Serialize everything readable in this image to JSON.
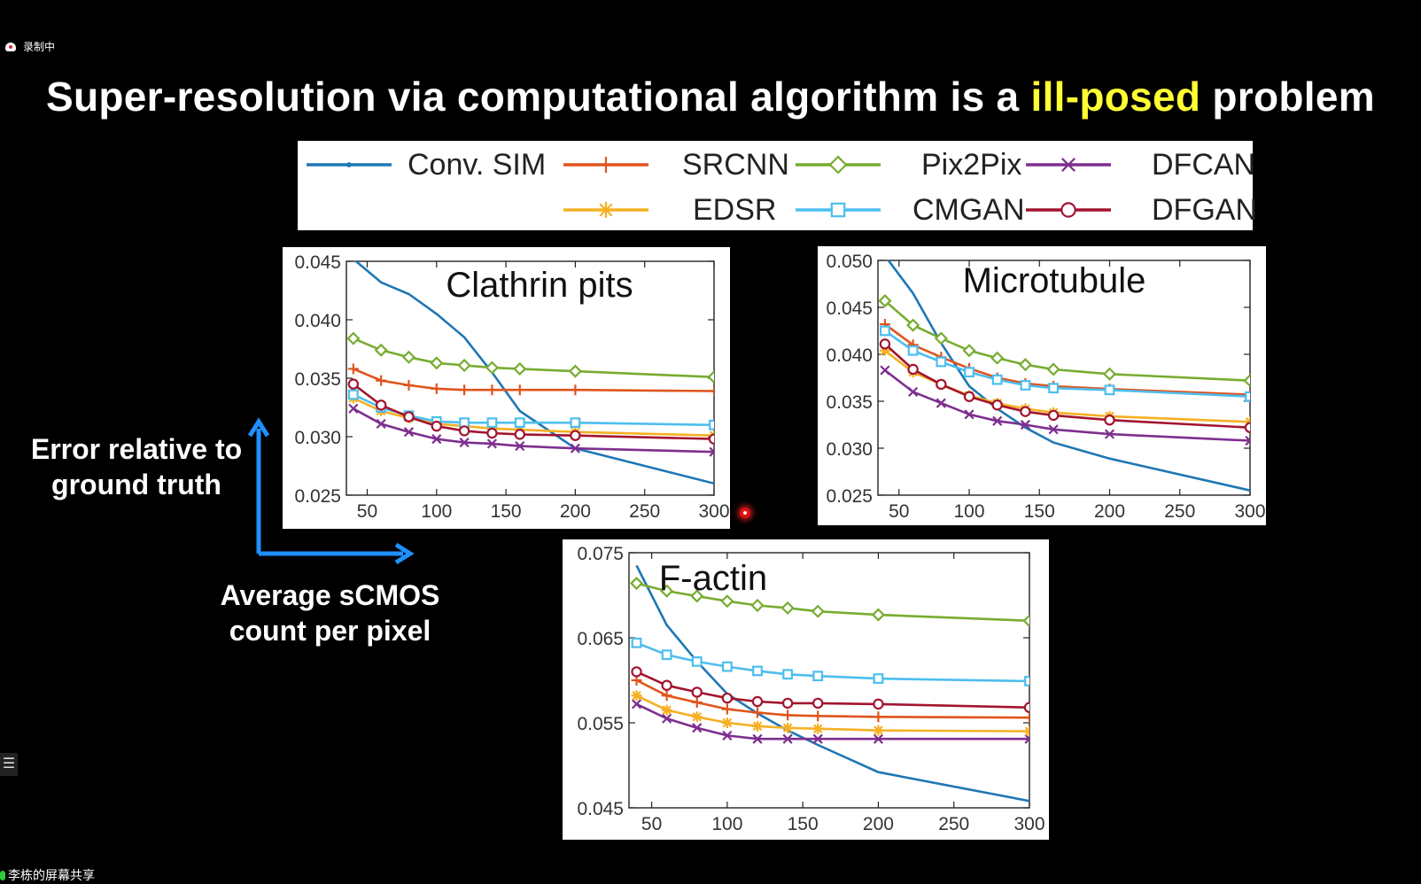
{
  "recording": {
    "label": "录制中"
  },
  "title": {
    "before": "Super-resolution via computational algorithm is a ",
    "highlight": "ill-posed",
    "after": " problem"
  },
  "legend": [
    {
      "name": "Conv. SIM",
      "color": "#1f77b4",
      "marker": "dot"
    },
    {
      "name": "SRCNN",
      "color": "#e0541d",
      "marker": "plus"
    },
    {
      "name": "Pix2Pix",
      "color": "#77ac30",
      "marker": "diamond"
    },
    {
      "name": "DFCAN",
      "color": "#7e2f8e",
      "marker": "x"
    },
    {
      "name": "EDSR",
      "color": "#f5b024",
      "marker": "star"
    },
    {
      "name": "CMGAN",
      "color": "#4dbeee",
      "marker": "square"
    },
    {
      "name": "DFGAN",
      "color": "#a2142f",
      "marker": "circle"
    }
  ],
  "axis_labels": {
    "y": "Error relative to ground truth",
    "x": "Average sCMOS count per pixel"
  },
  "chart_data": [
    {
      "type": "line",
      "title": "Clathrin pits",
      "x": [
        40,
        60,
        80,
        100,
        120,
        140,
        160,
        200,
        300
      ],
      "xlim": [
        35,
        300
      ],
      "ylim": [
        0.025,
        0.045
      ],
      "xticks": [
        "50",
        "100",
        "150",
        "200",
        "250",
        "300"
      ],
      "yticks": [
        "0.025",
        "0.030",
        "0.035",
        "0.040",
        "0.045"
      ],
      "series": [
        {
          "name": "Conv. SIM",
          "values": [
            0.0452,
            0.0432,
            0.0422,
            0.0405,
            0.0385,
            0.0355,
            0.0322,
            0.029,
            0.026
          ]
        },
        {
          "name": "SRCNN",
          "values": [
            0.0358,
            0.0348,
            0.0344,
            0.0341,
            0.034,
            0.034,
            0.034,
            0.034,
            0.0339
          ]
        },
        {
          "name": "Pix2Pix",
          "values": [
            0.0384,
            0.0374,
            0.0368,
            0.0363,
            0.0361,
            0.0359,
            0.0358,
            0.0356,
            0.0351
          ]
        },
        {
          "name": "DFCAN",
          "values": [
            0.0324,
            0.0311,
            0.0304,
            0.0298,
            0.0295,
            0.0294,
            0.0292,
            0.029,
            0.0287
          ]
        },
        {
          "name": "EDSR",
          "values": [
            0.0333,
            0.0322,
            0.0316,
            0.0311,
            0.0309,
            0.0307,
            0.0306,
            0.0304,
            0.0301
          ]
        },
        {
          "name": "CMGAN",
          "values": [
            0.0336,
            0.0325,
            0.0318,
            0.0313,
            0.0312,
            0.0312,
            0.0312,
            0.0312,
            0.031
          ]
        },
        {
          "name": "DFGAN",
          "values": [
            0.0345,
            0.0327,
            0.0317,
            0.0309,
            0.0305,
            0.0303,
            0.0302,
            0.0301,
            0.0298
          ]
        }
      ]
    },
    {
      "type": "line",
      "title": "Microtubule",
      "x": [
        40,
        60,
        80,
        100,
        120,
        140,
        160,
        200,
        300
      ],
      "xlim": [
        35,
        300
      ],
      "ylim": [
        0.025,
        0.05
      ],
      "xticks": [
        "50",
        "100",
        "150",
        "200",
        "250",
        "300"
      ],
      "yticks": [
        "0.025",
        "0.030",
        "0.035",
        "0.040",
        "0.045",
        "0.050"
      ],
      "series": [
        {
          "name": "Conv. SIM",
          "values": [
            0.0505,
            0.0465,
            0.0412,
            0.0366,
            0.0342,
            0.0322,
            0.0306,
            0.0289,
            0.0255
          ]
        },
        {
          "name": "SRCNN",
          "values": [
            0.0432,
            0.041,
            0.0397,
            0.0385,
            0.0375,
            0.0369,
            0.0366,
            0.0363,
            0.0357
          ]
        },
        {
          "name": "Pix2Pix",
          "values": [
            0.0457,
            0.0431,
            0.0417,
            0.0404,
            0.0396,
            0.0389,
            0.0384,
            0.0379,
            0.0372
          ]
        },
        {
          "name": "DFCAN",
          "values": [
            0.0383,
            0.036,
            0.0348,
            0.0336,
            0.0329,
            0.0325,
            0.032,
            0.0315,
            0.0308
          ]
        },
        {
          "name": "EDSR",
          "values": [
            0.0404,
            0.0381,
            0.0368,
            0.0356,
            0.0348,
            0.0342,
            0.0338,
            0.0334,
            0.0328
          ]
        },
        {
          "name": "CMGAN",
          "values": [
            0.0425,
            0.0404,
            0.0392,
            0.0381,
            0.0373,
            0.0367,
            0.0364,
            0.0362,
            0.0355
          ]
        },
        {
          "name": "DFGAN",
          "values": [
            0.0411,
            0.0384,
            0.0368,
            0.0355,
            0.0346,
            0.0339,
            0.0335,
            0.033,
            0.0322
          ]
        }
      ]
    },
    {
      "type": "line",
      "title": "F-actin",
      "x": [
        40,
        60,
        80,
        100,
        120,
        140,
        160,
        200,
        300
      ],
      "xlim": [
        35,
        300
      ],
      "ylim": [
        0.045,
        0.075
      ],
      "xticks": [
        "50",
        "100",
        "150",
        "200",
        "250",
        "300"
      ],
      "yticks": [
        "0.045",
        "0.055",
        "0.065",
        "0.075"
      ],
      "series": [
        {
          "name": "Conv. SIM",
          "values": [
            0.0735,
            0.0665,
            0.0622,
            0.0584,
            0.0561,
            0.0541,
            0.0524,
            0.0492,
            0.0458
          ]
        },
        {
          "name": "SRCNN",
          "values": [
            0.06,
            0.0582,
            0.0574,
            0.0566,
            0.0562,
            0.0559,
            0.0558,
            0.0557,
            0.0556
          ]
        },
        {
          "name": "Pix2Pix",
          "values": [
            0.0714,
            0.0705,
            0.0699,
            0.0693,
            0.0688,
            0.0685,
            0.0681,
            0.0677,
            0.067
          ]
        },
        {
          "name": "DFCAN",
          "values": [
            0.0572,
            0.0555,
            0.0544,
            0.0535,
            0.0531,
            0.0531,
            0.0531,
            0.0531,
            0.0531
          ]
        },
        {
          "name": "EDSR",
          "values": [
            0.0582,
            0.0565,
            0.0557,
            0.055,
            0.0546,
            0.0544,
            0.0543,
            0.0541,
            0.054
          ]
        },
        {
          "name": "CMGAN",
          "values": [
            0.0644,
            0.063,
            0.0622,
            0.0616,
            0.0611,
            0.0607,
            0.0605,
            0.0602,
            0.0599
          ]
        },
        {
          "name": "DFGAN",
          "values": [
            0.061,
            0.0594,
            0.0586,
            0.0579,
            0.0575,
            0.0573,
            0.0573,
            0.0572,
            0.0568
          ]
        }
      ]
    }
  ],
  "bottom_bar": {
    "label": "李栋的屏幕共享"
  }
}
